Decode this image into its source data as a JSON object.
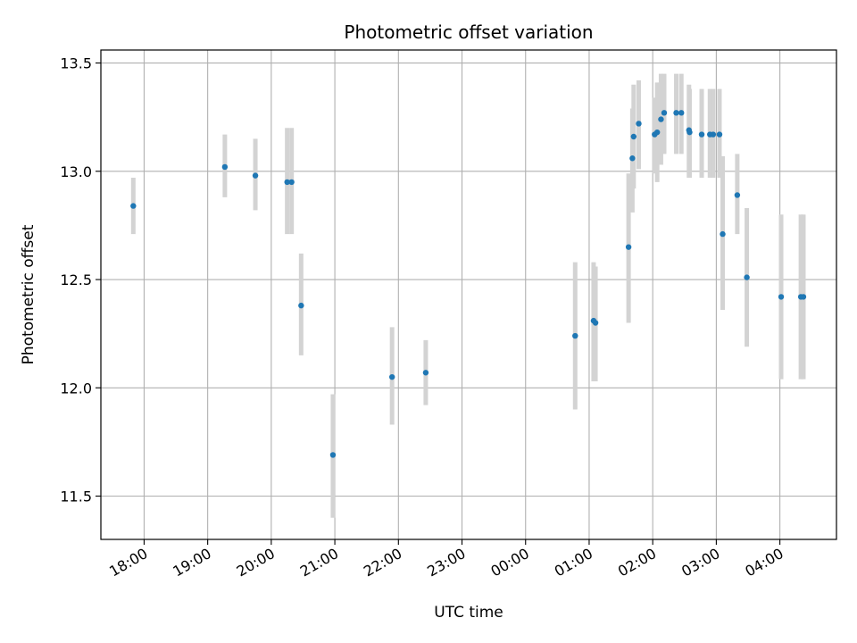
{
  "chart_data": {
    "type": "scatter",
    "title": "Photometric offset variation",
    "xlabel": "UTC time",
    "ylabel": "Photometric offset",
    "x_ticks": [
      "18:00",
      "19:00",
      "20:00",
      "21:00",
      "22:00",
      "23:00",
      "00:00",
      "01:00",
      "02:00",
      "03:00",
      "04:00"
    ],
    "y_ticks": [
      "11.5",
      "12.0",
      "12.5",
      "13.0",
      "13.5"
    ],
    "xlim_hours": [
      17.32,
      28.89
    ],
    "ylim": [
      11.3,
      13.56
    ],
    "grid": true,
    "colors": {
      "point": "#1f77b4",
      "errorbar": "#d3d3d3",
      "grid": "#b0b0b0"
    },
    "points": [
      {
        "t": 17.83,
        "y": 12.84,
        "lo": 12.71,
        "hi": 12.97
      },
      {
        "t": 19.27,
        "y": 13.02,
        "lo": 12.88,
        "hi": 13.17
      },
      {
        "t": 19.75,
        "y": 12.98,
        "lo": 12.82,
        "hi": 13.15
      },
      {
        "t": 20.25,
        "y": 12.95,
        "lo": 12.71,
        "hi": 13.2
      },
      {
        "t": 20.32,
        "y": 12.95,
        "lo": 12.71,
        "hi": 13.2
      },
      {
        "t": 20.47,
        "y": 12.38,
        "lo": 12.15,
        "hi": 12.62
      },
      {
        "t": 20.97,
        "y": 11.69,
        "lo": 11.4,
        "hi": 11.97
      },
      {
        "t": 21.9,
        "y": 12.05,
        "lo": 11.83,
        "hi": 12.28
      },
      {
        "t": 22.43,
        "y": 12.07,
        "lo": 11.92,
        "hi": 12.22
      },
      {
        "t": 24.78,
        "y": 12.24,
        "lo": 11.9,
        "hi": 12.58
      },
      {
        "t": 25.07,
        "y": 12.31,
        "lo": 12.03,
        "hi": 12.58
      },
      {
        "t": 25.1,
        "y": 12.3,
        "lo": 12.03,
        "hi": 12.56
      },
      {
        "t": 25.62,
        "y": 12.65,
        "lo": 12.3,
        "hi": 12.99
      },
      {
        "t": 25.68,
        "y": 13.06,
        "lo": 12.81,
        "hi": 13.29
      },
      {
        "t": 25.7,
        "y": 13.16,
        "lo": 12.92,
        "hi": 13.4
      },
      {
        "t": 25.78,
        "y": 13.22,
        "lo": 13.01,
        "hi": 13.42
      },
      {
        "t": 26.03,
        "y": 13.17,
        "lo": 12.99,
        "hi": 13.34
      },
      {
        "t": 26.07,
        "y": 13.18,
        "lo": 12.95,
        "hi": 13.41
      },
      {
        "t": 26.13,
        "y": 13.24,
        "lo": 13.03,
        "hi": 13.45
      },
      {
        "t": 26.18,
        "y": 13.27,
        "lo": 13.08,
        "hi": 13.45
      },
      {
        "t": 26.37,
        "y": 13.27,
        "lo": 13.08,
        "hi": 13.45
      },
      {
        "t": 26.45,
        "y": 13.27,
        "lo": 13.08,
        "hi": 13.45
      },
      {
        "t": 26.57,
        "y": 13.19,
        "lo": 12.97,
        "hi": 13.4
      },
      {
        "t": 26.58,
        "y": 13.18,
        "lo": 12.97,
        "hi": 13.38
      },
      {
        "t": 26.77,
        "y": 13.17,
        "lo": 12.97,
        "hi": 13.38
      },
      {
        "t": 26.9,
        "y": 13.17,
        "lo": 12.97,
        "hi": 13.38
      },
      {
        "t": 26.95,
        "y": 13.17,
        "lo": 12.97,
        "hi": 13.38
      },
      {
        "t": 27.05,
        "y": 13.17,
        "lo": 12.97,
        "hi": 13.38
      },
      {
        "t": 27.1,
        "y": 12.71,
        "lo": 12.36,
        "hi": 13.07
      },
      {
        "t": 27.33,
        "y": 12.89,
        "lo": 12.71,
        "hi": 13.08
      },
      {
        "t": 27.48,
        "y": 12.51,
        "lo": 12.19,
        "hi": 12.83
      },
      {
        "t": 28.02,
        "y": 12.42,
        "lo": 12.04,
        "hi": 12.8
      },
      {
        "t": 28.33,
        "y": 12.42,
        "lo": 12.04,
        "hi": 12.8
      },
      {
        "t": 28.37,
        "y": 12.42,
        "lo": 12.04,
        "hi": 12.8
      }
    ]
  }
}
